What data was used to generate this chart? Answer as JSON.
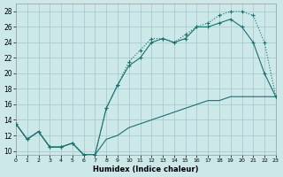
{
  "xlabel": "Humidex (Indice chaleur)",
  "xlim": [
    0,
    23
  ],
  "ylim": [
    9.5,
    29
  ],
  "xticks": [
    0,
    1,
    2,
    3,
    4,
    5,
    6,
    7,
    8,
    9,
    10,
    11,
    12,
    13,
    14,
    15,
    16,
    17,
    18,
    19,
    20,
    21,
    22,
    23
  ],
  "yticks": [
    10,
    12,
    14,
    16,
    18,
    20,
    22,
    24,
    26,
    28
  ],
  "bg_color": "#cce8e8",
  "grid_color": "#aacccc",
  "line_color": "#1a7070",
  "line1_x": [
    0,
    1,
    2,
    3,
    4,
    5,
    6,
    7,
    8,
    9,
    10,
    11,
    12,
    13,
    14,
    15,
    16,
    17,
    18,
    19,
    20,
    21,
    22,
    23
  ],
  "line1_y": [
    13.5,
    11.5,
    12.5,
    10.5,
    10.5,
    11.0,
    9.5,
    9.5,
    15.5,
    18.5,
    21.5,
    23.0,
    24.5,
    24.5,
    24.0,
    25.0,
    26.0,
    26.5,
    27.5,
    28.0,
    28.0,
    27.5,
    24.0,
    17.0
  ],
  "line2_x": [
    0,
    1,
    2,
    3,
    4,
    5,
    6,
    7,
    8,
    9,
    10,
    11,
    12,
    13,
    14,
    15,
    16,
    17,
    18,
    19,
    20,
    21,
    22,
    23
  ],
  "line2_y": [
    13.5,
    11.5,
    12.5,
    10.5,
    10.5,
    11.0,
    9.5,
    9.5,
    15.5,
    18.5,
    21.0,
    22.0,
    24.0,
    24.5,
    24.0,
    24.5,
    26.0,
    26.0,
    26.5,
    27.0,
    26.0,
    24.0,
    20.0,
    17.0
  ],
  "line3_x": [
    0,
    1,
    2,
    3,
    4,
    5,
    6,
    7,
    8,
    9,
    10,
    11,
    12,
    13,
    14,
    15,
    16,
    17,
    18,
    19,
    20,
    21,
    22,
    23
  ],
  "line3_y": [
    13.5,
    11.5,
    12.5,
    10.5,
    10.5,
    11.0,
    9.5,
    9.5,
    11.5,
    12.0,
    13.0,
    13.5,
    14.0,
    14.5,
    15.0,
    15.5,
    16.0,
    16.5,
    16.5,
    17.0,
    17.0,
    17.0,
    17.0,
    17.0
  ]
}
